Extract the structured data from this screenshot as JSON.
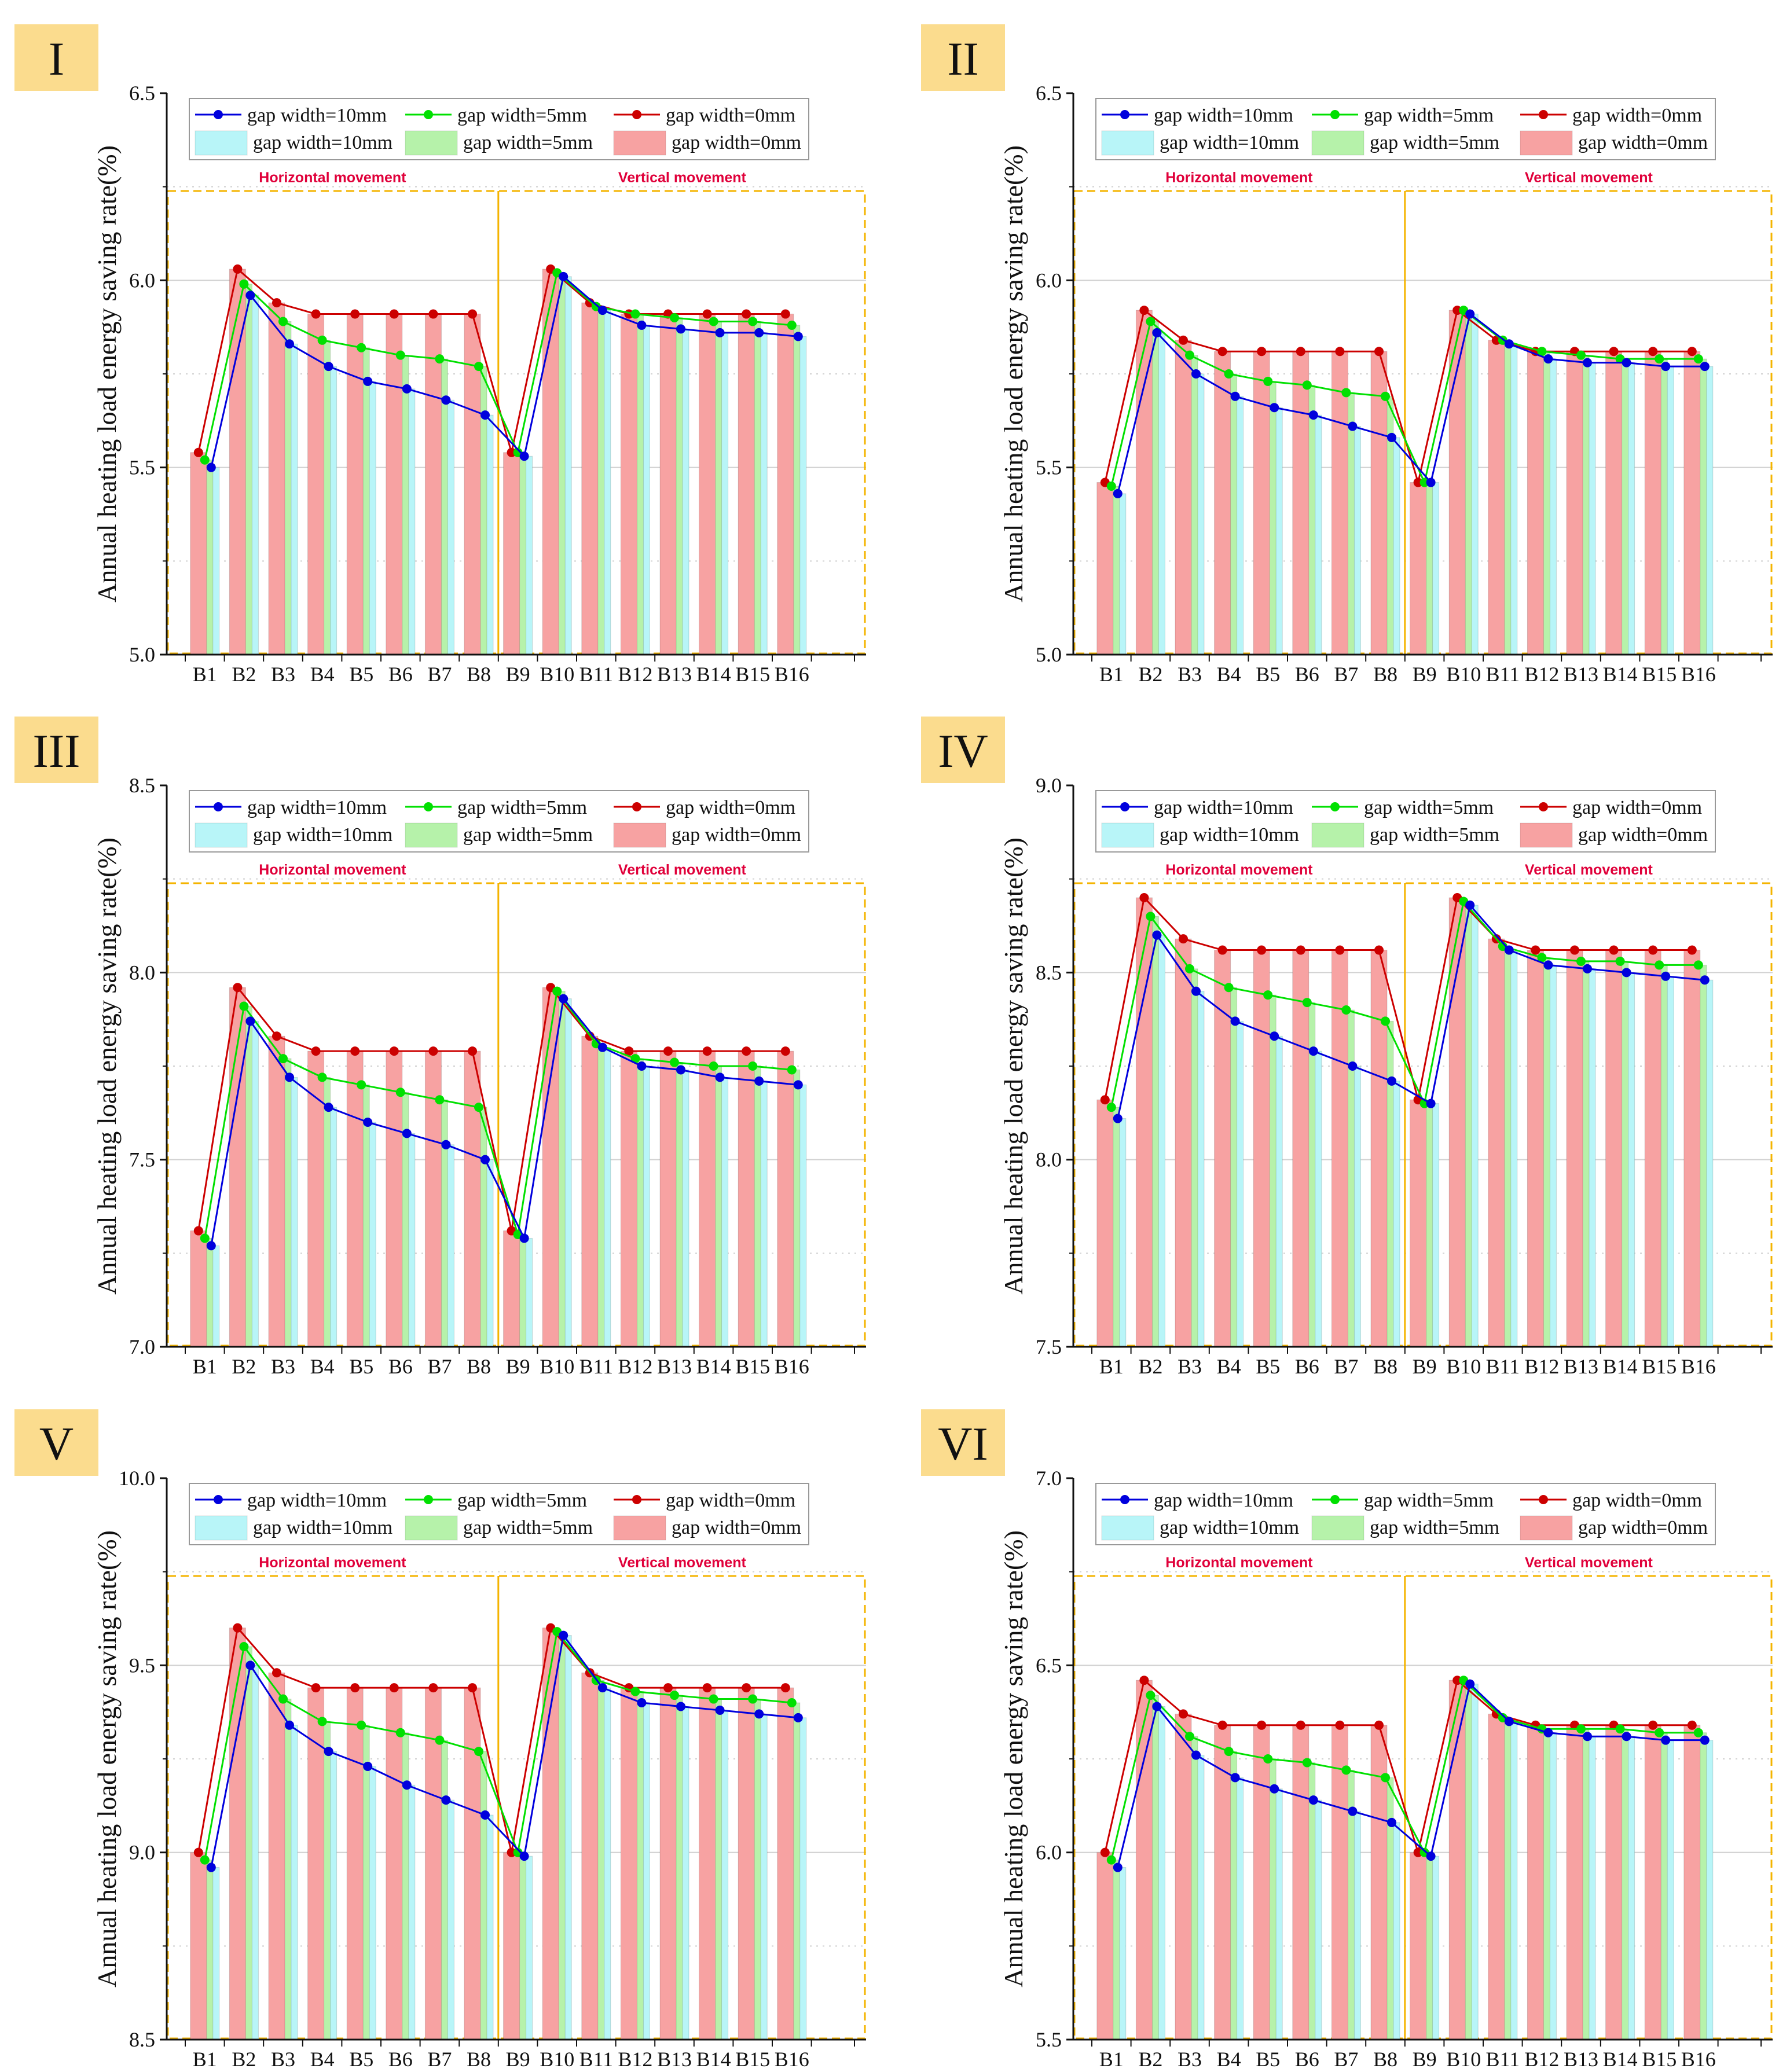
{
  "categories": [
    "B1",
    "B2",
    "B3",
    "B4",
    "B5",
    "B6",
    "B7",
    "B8",
    "B9",
    "B10",
    "B11",
    "B12",
    "B13",
    "B14",
    "B15",
    "B16"
  ],
  "ylabel": "Annual heating load energy saving rate(%)",
  "sections": {
    "left": "Horizontal movement",
    "right": "Vertical movement"
  },
  "colors": {
    "line_10": "#0000dd",
    "line_5": "#00e000",
    "line_0": "#cc0000",
    "bar_10": "#b8f5f8",
    "bar_5": "#b6f2aa",
    "bar_0": "#f7a2a2",
    "badge": "#fbdc8e",
    "dash": "#f4b400",
    "grid": "#d0d0d0"
  },
  "chart_data": [
    {
      "panel": "I",
      "type": "bar+line",
      "ylim": [
        5.0,
        6.5
      ],
      "yticks": [
        "5.0",
        "5.5",
        "6.0",
        "6.5"
      ],
      "series": [
        {
          "name": "gap width=10mm",
          "values": [
            5.5,
            5.96,
            5.83,
            5.77,
            5.73,
            5.71,
            5.68,
            5.64,
            5.53,
            6.01,
            5.92,
            5.88,
            5.87,
            5.86,
            5.86,
            5.85
          ]
        },
        {
          "name": "gap width=5mm",
          "values": [
            5.52,
            5.99,
            5.89,
            5.84,
            5.82,
            5.8,
            5.79,
            5.77,
            5.54,
            6.02,
            5.93,
            5.91,
            5.9,
            5.89,
            5.89,
            5.88
          ]
        },
        {
          "name": "gap width=0mm",
          "values": [
            5.54,
            6.03,
            5.94,
            5.91,
            5.91,
            5.91,
            5.91,
            5.91,
            5.54,
            6.03,
            5.94,
            5.91,
            5.91,
            5.91,
            5.91,
            5.91
          ]
        }
      ]
    },
    {
      "panel": "II",
      "type": "bar+line",
      "ylim": [
        5.0,
        6.5
      ],
      "yticks": [
        "5.0",
        "5.5",
        "6.0",
        "6.5"
      ],
      "series": [
        {
          "name": "gap width=10mm",
          "values": [
            5.43,
            5.86,
            5.75,
            5.69,
            5.66,
            5.64,
            5.61,
            5.58,
            5.46,
            5.91,
            5.83,
            5.79,
            5.78,
            5.78,
            5.77,
            5.77
          ]
        },
        {
          "name": "gap width=5mm",
          "values": [
            5.45,
            5.89,
            5.8,
            5.75,
            5.73,
            5.72,
            5.7,
            5.69,
            5.46,
            5.92,
            5.84,
            5.81,
            5.8,
            5.79,
            5.79,
            5.79
          ]
        },
        {
          "name": "gap width=0mm",
          "values": [
            5.46,
            5.92,
            5.84,
            5.81,
            5.81,
            5.81,
            5.81,
            5.81,
            5.46,
            5.92,
            5.84,
            5.81,
            5.81,
            5.81,
            5.81,
            5.81
          ]
        }
      ]
    },
    {
      "panel": "III",
      "type": "bar+line",
      "ylim": [
        7.0,
        8.5
      ],
      "yticks": [
        "7.0",
        "7.5",
        "8.0",
        "8.5"
      ],
      "series": [
        {
          "name": "gap width=10mm",
          "values": [
            7.27,
            7.87,
            7.72,
            7.64,
            7.6,
            7.57,
            7.54,
            7.5,
            7.29,
            7.93,
            7.8,
            7.75,
            7.74,
            7.72,
            7.71,
            7.7
          ]
        },
        {
          "name": "gap width=5mm",
          "values": [
            7.29,
            7.91,
            7.77,
            7.72,
            7.7,
            7.68,
            7.66,
            7.64,
            7.3,
            7.95,
            7.81,
            7.77,
            7.76,
            7.75,
            7.75,
            7.74
          ]
        },
        {
          "name": "gap width=0mm",
          "values": [
            7.31,
            7.96,
            7.83,
            7.79,
            7.79,
            7.79,
            7.79,
            7.79,
            7.31,
            7.96,
            7.83,
            7.79,
            7.79,
            7.79,
            7.79,
            7.79
          ]
        }
      ]
    },
    {
      "panel": "IV",
      "type": "bar+line",
      "ylim": [
        7.5,
        9.0
      ],
      "yticks": [
        "7.5",
        "8.0",
        "8.5",
        "9.0"
      ],
      "series": [
        {
          "name": "gap width=10mm",
          "values": [
            8.11,
            8.6,
            8.45,
            8.37,
            8.33,
            8.29,
            8.25,
            8.21,
            8.15,
            8.68,
            8.56,
            8.52,
            8.51,
            8.5,
            8.49,
            8.48
          ]
        },
        {
          "name": "gap width=5mm",
          "values": [
            8.14,
            8.65,
            8.51,
            8.46,
            8.44,
            8.42,
            8.4,
            8.37,
            8.15,
            8.69,
            8.57,
            8.54,
            8.53,
            8.53,
            8.52,
            8.52
          ]
        },
        {
          "name": "gap width=0mm",
          "values": [
            8.16,
            8.7,
            8.59,
            8.56,
            8.56,
            8.56,
            8.56,
            8.56,
            8.16,
            8.7,
            8.59,
            8.56,
            8.56,
            8.56,
            8.56,
            8.56
          ]
        }
      ]
    },
    {
      "panel": "V",
      "type": "bar+line",
      "ylim": [
        8.5,
        10.0
      ],
      "yticks": [
        "8.5",
        "9.0",
        "9.5",
        "10.0"
      ],
      "series": [
        {
          "name": "gap width=10mm",
          "values": [
            8.96,
            9.5,
            9.34,
            9.27,
            9.23,
            9.18,
            9.14,
            9.1,
            8.99,
            9.58,
            9.44,
            9.4,
            9.39,
            9.38,
            9.37,
            9.36
          ]
        },
        {
          "name": "gap width=5mm",
          "values": [
            8.98,
            9.55,
            9.41,
            9.35,
            9.34,
            9.32,
            9.3,
            9.27,
            9.0,
            9.59,
            9.46,
            9.43,
            9.42,
            9.41,
            9.41,
            9.4
          ]
        },
        {
          "name": "gap width=0mm",
          "values": [
            9.0,
            9.6,
            9.48,
            9.44,
            9.44,
            9.44,
            9.44,
            9.44,
            9.0,
            9.6,
            9.48,
            9.44,
            9.44,
            9.44,
            9.44,
            9.44
          ]
        }
      ]
    },
    {
      "panel": "VI",
      "type": "bar+line",
      "ylim": [
        5.5,
        7.0
      ],
      "yticks": [
        "5.5",
        "6.0",
        "6.5",
        "7.0"
      ],
      "series": [
        {
          "name": "gap width=10mm",
          "values": [
            5.96,
            6.39,
            6.26,
            6.2,
            6.17,
            6.14,
            6.11,
            6.08,
            5.99,
            6.45,
            6.35,
            6.32,
            6.31,
            6.31,
            6.3,
            6.3
          ]
        },
        {
          "name": "gap width=5mm",
          "values": [
            5.98,
            6.42,
            6.31,
            6.27,
            6.25,
            6.24,
            6.22,
            6.2,
            6.0,
            6.46,
            6.36,
            6.33,
            6.33,
            6.33,
            6.32,
            6.32
          ]
        },
        {
          "name": "gap width=0mm",
          "values": [
            6.0,
            6.46,
            6.37,
            6.34,
            6.34,
            6.34,
            6.34,
            6.34,
            6.0,
            6.46,
            6.37,
            6.34,
            6.34,
            6.34,
            6.34,
            6.34
          ]
        }
      ]
    }
  ]
}
